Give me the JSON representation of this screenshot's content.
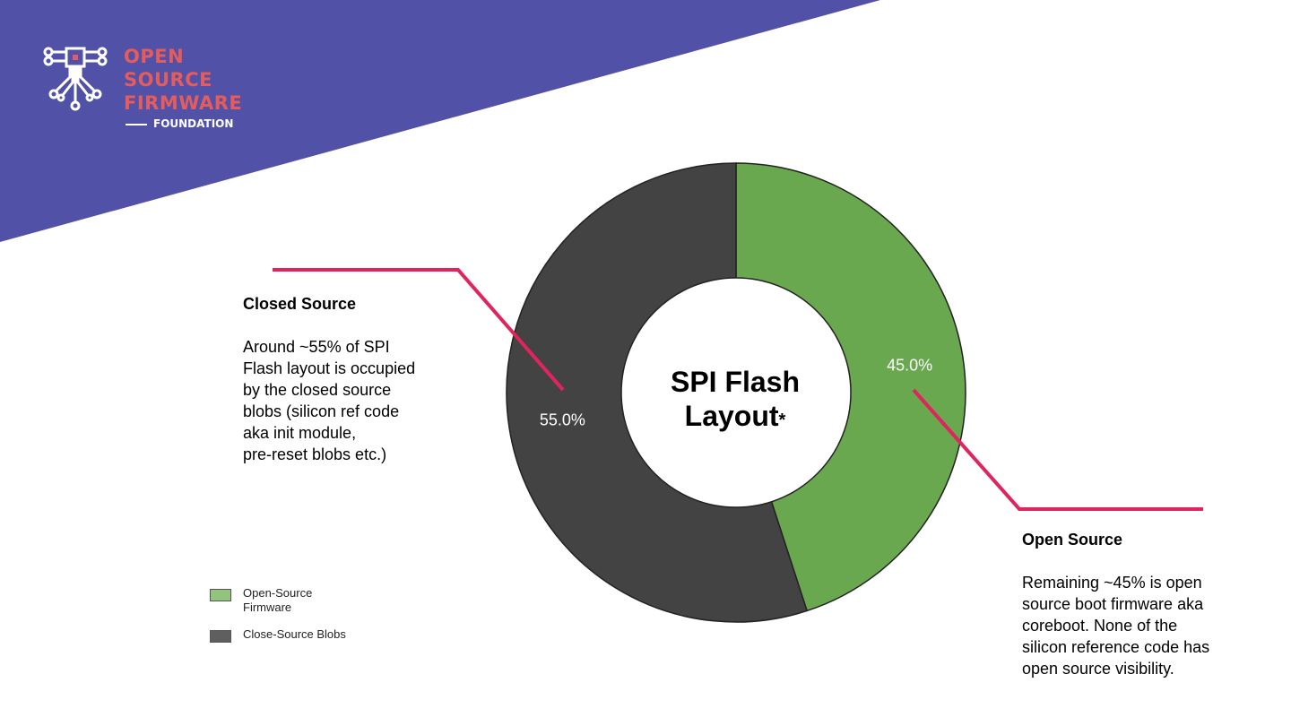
{
  "brand": {
    "name_lines": [
      "OPEN",
      "SOURCE",
      "FIRMWARE"
    ],
    "sub": "FOUNDATION",
    "colors": {
      "banner": "#5151a8",
      "logo_text": "#e45c5d",
      "logo_chip": "#e45c5d"
    }
  },
  "chart_data": {
    "type": "pie",
    "style": "donut",
    "title": "SPI Flash Layout",
    "title_suffix": "*",
    "series": [
      {
        "name": "Open-Source Firmware",
        "value": 45.0,
        "label": "45.0%",
        "color": "#6aa84f"
      },
      {
        "name": "Close-Source Blobs",
        "value": 55.0,
        "label": "55.0%",
        "color": "#434343"
      }
    ],
    "legend_position": "bottom-left",
    "start_angle_deg": 0,
    "direction": "clockwise"
  },
  "legend": {
    "items": [
      {
        "label": "Open-Source\nFirmware",
        "color": "#93c47d"
      },
      {
        "label": "Close-Source Blobs",
        "color": "#5f5f5f"
      }
    ]
  },
  "annotations": {
    "closed": {
      "heading": "Closed Source",
      "body": "Around ~55% of SPI\nFlash layout is occupied\nby the closed source\nblobs (silicon ref code\naka init module,\npre-reset blobs etc.)"
    },
    "open": {
      "heading": "Open Source",
      "body": "Remaining ~45% is open\nsource boot firmware aka\ncoreboot. None of the\nsilicon reference code has\nopen source visibility."
    },
    "leader_color": "#e0245e"
  }
}
